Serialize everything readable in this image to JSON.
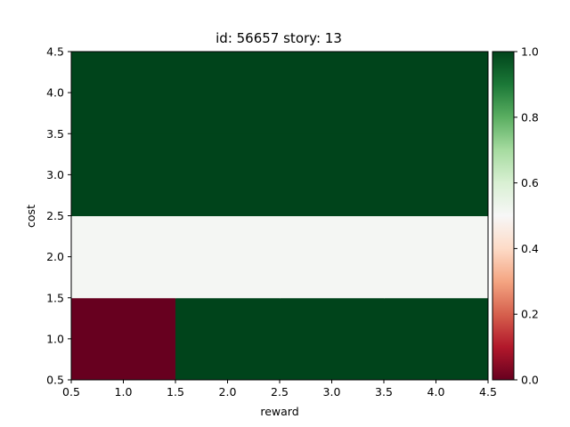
{
  "chart_data": {
    "type": "heatmap",
    "title": "id: 56657 story: 13",
    "xlabel": "reward",
    "ylabel": "cost",
    "x_centers": [
      1,
      2,
      3,
      4
    ],
    "y_centers": [
      1,
      2,
      3,
      4
    ],
    "xlim": [
      0.5,
      4.5
    ],
    "ylim": [
      0.5,
      4.5
    ],
    "xticks": [
      "0.5",
      "1.0",
      "1.5",
      "2.0",
      "2.5",
      "3.0",
      "3.5",
      "4.0",
      "4.5"
    ],
    "yticks": [
      "0.5",
      "1.0",
      "1.5",
      "2.0",
      "2.5",
      "3.0",
      "3.5",
      "4.0",
      "4.5"
    ],
    "values": [
      [
        0.0,
        1.0,
        1.0,
        1.0
      ],
      [
        0.51,
        0.51,
        0.51,
        0.51
      ],
      [
        1.0,
        1.0,
        1.0,
        1.0
      ],
      [
        1.0,
        1.0,
        1.0,
        1.0
      ]
    ],
    "colormap": "RdYlGn-like (dark red → white → dark green)",
    "colorbar": {
      "range": [
        0.0,
        1.0
      ],
      "ticks": [
        "0.0",
        "0.2",
        "0.4",
        "0.6",
        "0.8",
        "1.0"
      ]
    },
    "colors": {
      "min": "#67001f",
      "mid": "#f7f7f7",
      "max": "#00441b"
    },
    "grid": false
  }
}
